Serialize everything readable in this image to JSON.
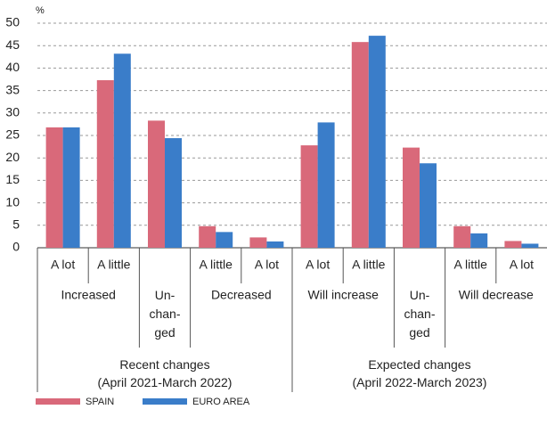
{
  "chart_data": {
    "type": "bar",
    "y_label": "%",
    "ylim": [
      0,
      50
    ],
    "yticks": [
      0,
      5,
      10,
      15,
      20,
      25,
      30,
      35,
      40,
      45,
      50
    ],
    "grid": true,
    "sections": [
      {
        "label": "Recent changes\n(April 2021-March 2022)",
        "groups": [
          {
            "label": "Increased",
            "categories": [
              "A lot",
              "A little"
            ]
          },
          {
            "label": "Un-\nchan-\nged",
            "categories": [
              null
            ]
          },
          {
            "label": "Decreased",
            "categories": [
              "A little",
              "A lot"
            ]
          }
        ]
      },
      {
        "label": "Expected changes\n(April 2022-March 2023)",
        "groups": [
          {
            "label": "Will increase",
            "categories": [
              "A lot",
              "A little"
            ]
          },
          {
            "label": "Un-\nchan-\nged",
            "categories": [
              null
            ]
          },
          {
            "label": "Will decrease",
            "categories": [
              "A little",
              "A lot"
            ]
          }
        ]
      }
    ],
    "series": [
      {
        "name": "SPAIN",
        "color": "#d9697a",
        "values": [
          26.8,
          37.3,
          28.3,
          4.8,
          2.3,
          22.8,
          45.8,
          22.3,
          4.8,
          1.5
        ]
      },
      {
        "name": "EURO AREA",
        "color": "#3a7dc9",
        "values": [
          26.8,
          43.2,
          24.4,
          3.5,
          1.4,
          27.9,
          47.2,
          18.8,
          3.2,
          0.9
        ]
      }
    ]
  }
}
